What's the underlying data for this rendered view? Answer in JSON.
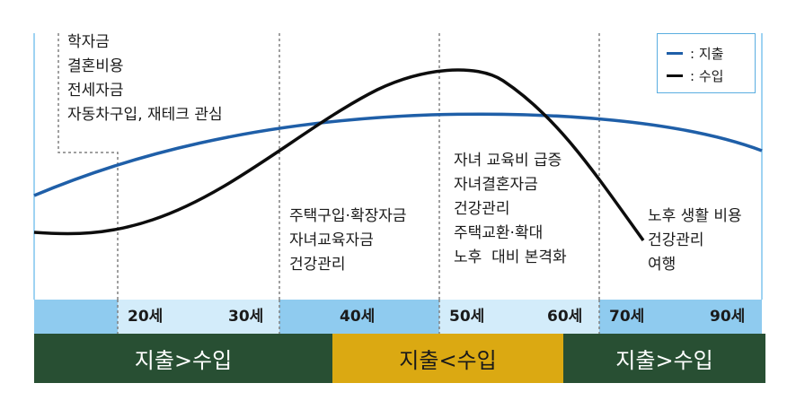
{
  "colors": {
    "expense_line": "#1f5fa8",
    "income_line": "#0d0d0d",
    "age_strip_dark": "#8fcbef",
    "age_strip_light": "#d3ecfa",
    "band_green": "#284f33",
    "band_gold": "#dba912",
    "frame_blue": "#9fd3f2",
    "divider": "#808080"
  },
  "legend": {
    "expense": ": 지출",
    "income": ": 수입"
  },
  "stages": [
    {
      "lines": [
        "학자금",
        "결혼비용",
        "전세자금",
        "자동차구입, 재테크 관심"
      ]
    },
    {
      "lines": [
        "주택구입·확장자금",
        "자녀교육자금",
        "건강관리"
      ]
    },
    {
      "lines": [
        "자녀 교육비 급증",
        "자녀결혼자금",
        "건강관리",
        "주택교환·확대",
        "노후  대비 본격화"
      ]
    },
    {
      "lines": [
        "노후 생활 비용",
        "건강관리",
        "여행"
      ]
    }
  ],
  "ages": [
    "20세",
    "30세",
    "40세",
    "50세",
    "60세",
    "70세",
    "90세"
  ],
  "bands": [
    {
      "label": "지출>수입",
      "color": "#284f33"
    },
    {
      "label": "지출<수입",
      "color": "#dba912"
    },
    {
      "label": "지출>수입",
      "color": "#284f33"
    }
  ],
  "series": [
    {
      "name": "지출",
      "role": "expense"
    },
    {
      "name": "수입",
      "role": "income"
    }
  ]
}
